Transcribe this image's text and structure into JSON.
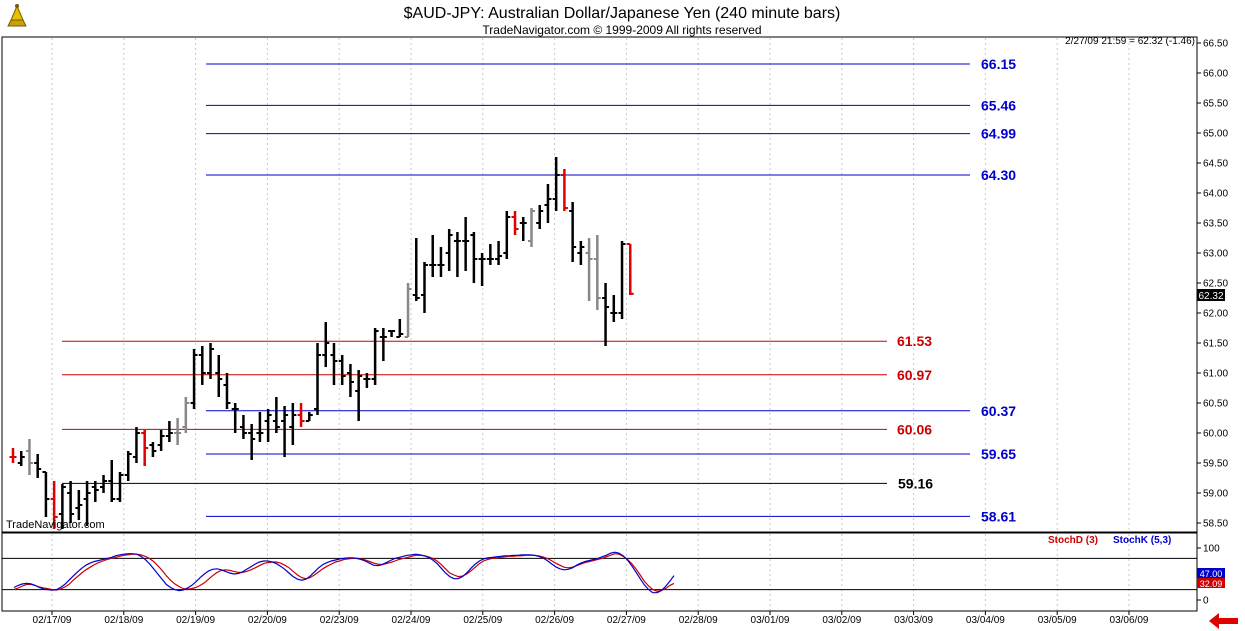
{
  "header": {
    "title": "$AUD-JPY:  Australian Dollar/Japanese Yen  (240 minute bars)",
    "copyright": "TradeNavigator.com © 1999-2009 All rights reserved",
    "last_stamp": "2/27/09 21:59 = 62.32 (-1.46)",
    "watermark": "TradeNavigator.com"
  },
  "colors": {
    "blue": "#0000cc",
    "red": "#cc0000",
    "black": "#000000",
    "up": "#000000",
    "down": "#e00000",
    "neutral": "#888888"
  },
  "chart_data": [
    {
      "type": "ohlc",
      "ylim": [
        58.4,
        66.55
      ],
      "y_ticks": [
        "66.50",
        "66.00",
        "65.50",
        "65.00",
        "64.50",
        "64.00",
        "63.50",
        "63.00",
        "62.50",
        "62.00",
        "61.50",
        "61.00",
        "60.50",
        "60.00",
        "59.50",
        "59.00",
        "58.50"
      ],
      "y_tick_values": [
        66.5,
        66.0,
        65.5,
        65.0,
        64.5,
        64.0,
        63.5,
        63.0,
        62.5,
        62.0,
        61.5,
        61.0,
        60.5,
        60.0,
        59.5,
        59.0,
        58.5
      ],
      "x_labels": [
        "02/17/09",
        "02/18/09",
        "02/19/09",
        "02/20/09",
        "02/23/09",
        "02/24/09",
        "02/25/09",
        "02/26/09",
        "02/27/09",
        "02/28/09",
        "03/01/09",
        "03/02/09",
        "03/03/09",
        "03/04/09",
        "03/05/09",
        "03/06/09"
      ],
      "last_price": "62.32",
      "levels": [
        {
          "label": "66.15",
          "value": 66.15,
          "color": "blue"
        },
        {
          "label": "65.46",
          "value": 65.46,
          "color": "blue"
        },
        {
          "label": "64.99",
          "value": 64.99,
          "color": "blue"
        },
        {
          "label": "64.30",
          "value": 64.3,
          "color": "blue"
        },
        {
          "label": "61.53",
          "value": 61.53,
          "color": "red"
        },
        {
          "label": "60.97",
          "value": 60.97,
          "color": "red"
        },
        {
          "label": "60.37",
          "value": 60.37,
          "color": "blue"
        },
        {
          "label": "60.06",
          "value": 60.06,
          "color": "red"
        },
        {
          "label": "59.65",
          "value": 59.65,
          "color": "blue"
        },
        {
          "label": "59.16",
          "value": 59.16,
          "color": "black"
        },
        {
          "label": "58.61",
          "value": 58.61,
          "color": "blue"
        }
      ],
      "bars": [
        {
          "o": 59.6,
          "h": 59.75,
          "l": 59.5,
          "c": 59.6,
          "d": "down"
        },
        {
          "o": 59.5,
          "h": 59.7,
          "l": 59.45,
          "c": 59.6,
          "d": "up"
        },
        {
          "o": 59.7,
          "h": 59.9,
          "l": 59.3,
          "c": 59.5,
          "d": "neutral"
        },
        {
          "o": 59.5,
          "h": 59.65,
          "l": 59.25,
          "c": 59.4,
          "d": "up"
        },
        {
          "o": 59.35,
          "h": 59.35,
          "l": 58.6,
          "c": 58.9,
          "d": "up"
        },
        {
          "o": 58.9,
          "h": 59.2,
          "l": 58.4,
          "c": 58.6,
          "d": "down"
        },
        {
          "o": 58.65,
          "h": 59.15,
          "l": 58.4,
          "c": 59.1,
          "d": "up"
        },
        {
          "o": 59.0,
          "h": 59.2,
          "l": 58.5,
          "c": 58.65,
          "d": "up"
        },
        {
          "o": 58.75,
          "h": 59.05,
          "l": 58.55,
          "c": 58.8,
          "d": "up"
        },
        {
          "o": 58.9,
          "h": 59.2,
          "l": 58.45,
          "c": 59.0,
          "d": "up"
        },
        {
          "o": 59.1,
          "h": 59.2,
          "l": 58.85,
          "c": 59.05,
          "d": "up"
        },
        {
          "o": 59.1,
          "h": 59.3,
          "l": 59.0,
          "c": 59.2,
          "d": "up"
        },
        {
          "o": 59.2,
          "h": 59.55,
          "l": 58.85,
          "c": 58.9,
          "d": "up"
        },
        {
          "o": 58.9,
          "h": 59.35,
          "l": 58.85,
          "c": 59.3,
          "d": "up"
        },
        {
          "o": 59.3,
          "h": 59.7,
          "l": 59.2,
          "c": 59.65,
          "d": "up"
        },
        {
          "o": 59.6,
          "h": 60.1,
          "l": 59.5,
          "c": 60.0,
          "d": "up"
        },
        {
          "o": 60.0,
          "h": 60.05,
          "l": 59.45,
          "c": 59.75,
          "d": "down"
        },
        {
          "o": 59.8,
          "h": 59.85,
          "l": 59.6,
          "c": 59.7,
          "d": "up"
        },
        {
          "o": 59.8,
          "h": 60.05,
          "l": 59.7,
          "c": 59.95,
          "d": "up"
        },
        {
          "o": 59.95,
          "h": 60.2,
          "l": 59.85,
          "c": 60.0,
          "d": "up"
        },
        {
          "o": 60.0,
          "h": 60.25,
          "l": 59.8,
          "c": 60.0,
          "d": "neutral"
        },
        {
          "o": 60.1,
          "h": 60.6,
          "l": 60.0,
          "c": 60.5,
          "d": "neutral"
        },
        {
          "o": 60.5,
          "h": 61.4,
          "l": 60.4,
          "c": 61.3,
          "d": "up"
        },
        {
          "o": 61.3,
          "h": 61.45,
          "l": 60.8,
          "c": 61.0,
          "d": "up"
        },
        {
          "o": 61.0,
          "h": 61.5,
          "l": 60.9,
          "c": 61.4,
          "d": "up"
        },
        {
          "o": 61.0,
          "h": 61.3,
          "l": 60.6,
          "c": 60.9,
          "d": "up"
        },
        {
          "o": 60.8,
          "h": 61.0,
          "l": 60.4,
          "c": 60.5,
          "d": "up"
        },
        {
          "o": 60.4,
          "h": 60.5,
          "l": 60.0,
          "c": 60.4,
          "d": "up"
        },
        {
          "o": 60.1,
          "h": 60.3,
          "l": 59.9,
          "c": 60.0,
          "d": "up"
        },
        {
          "o": 60.0,
          "h": 60.15,
          "l": 59.55,
          "c": 59.9,
          "d": "up"
        },
        {
          "o": 60.0,
          "h": 60.35,
          "l": 59.85,
          "c": 60.0,
          "d": "up"
        },
        {
          "o": 60.2,
          "h": 60.4,
          "l": 59.85,
          "c": 60.3,
          "d": "up"
        },
        {
          "o": 60.2,
          "h": 60.6,
          "l": 60.0,
          "c": 60.1,
          "d": "up"
        },
        {
          "o": 60.2,
          "h": 60.45,
          "l": 59.6,
          "c": 60.3,
          "d": "up"
        },
        {
          "o": 60.1,
          "h": 60.5,
          "l": 59.8,
          "c": 60.3,
          "d": "up"
        },
        {
          "o": 60.3,
          "h": 60.5,
          "l": 60.1,
          "c": 60.2,
          "d": "down"
        },
        {
          "o": 60.2,
          "h": 60.35,
          "l": 60.2,
          "c": 60.3,
          "d": "up"
        },
        {
          "o": 60.4,
          "h": 61.5,
          "l": 60.3,
          "c": 61.3,
          "d": "up"
        },
        {
          "o": 61.3,
          "h": 61.85,
          "l": 61.1,
          "c": 61.5,
          "d": "up"
        },
        {
          "o": 61.3,
          "h": 61.5,
          "l": 60.8,
          "c": 61.2,
          "d": "up"
        },
        {
          "o": 61.2,
          "h": 61.3,
          "l": 60.8,
          "c": 60.95,
          "d": "up"
        },
        {
          "o": 61.0,
          "h": 61.15,
          "l": 60.6,
          "c": 60.85,
          "d": "up"
        },
        {
          "o": 60.7,
          "h": 61.05,
          "l": 60.2,
          "c": 60.95,
          "d": "up"
        },
        {
          "o": 60.9,
          "h": 61.0,
          "l": 60.75,
          "c": 60.9,
          "d": "up"
        },
        {
          "o": 60.9,
          "h": 61.75,
          "l": 60.8,
          "c": 61.7,
          "d": "up"
        },
        {
          "o": 61.6,
          "h": 61.75,
          "l": 61.2,
          "c": 61.6,
          "d": "up"
        },
        {
          "o": 61.7,
          "h": 61.7,
          "l": 61.6,
          "c": 61.7,
          "d": "up"
        },
        {
          "o": 61.6,
          "h": 61.9,
          "l": 61.6,
          "c": 61.65,
          "d": "up"
        },
        {
          "o": 61.6,
          "h": 62.5,
          "l": 61.6,
          "c": 62.4,
          "d": "neutral"
        },
        {
          "o": 62.3,
          "h": 63.25,
          "l": 62.2,
          "c": 62.25,
          "d": "up"
        },
        {
          "o": 62.3,
          "h": 62.85,
          "l": 62.0,
          "c": 62.8,
          "d": "up"
        },
        {
          "o": 62.8,
          "h": 63.3,
          "l": 62.6,
          "c": 62.8,
          "d": "up"
        },
        {
          "o": 62.8,
          "h": 63.1,
          "l": 62.6,
          "c": 62.8,
          "d": "up"
        },
        {
          "o": 63.0,
          "h": 63.4,
          "l": 62.7,
          "c": 63.3,
          "d": "up"
        },
        {
          "o": 63.2,
          "h": 63.35,
          "l": 62.6,
          "c": 63.2,
          "d": "up"
        },
        {
          "o": 63.2,
          "h": 63.6,
          "l": 62.7,
          "c": 63.2,
          "d": "up"
        },
        {
          "o": 63.3,
          "h": 63.35,
          "l": 62.5,
          "c": 62.9,
          "d": "up"
        },
        {
          "o": 62.9,
          "h": 63.0,
          "l": 62.45,
          "c": 62.9,
          "d": "up"
        },
        {
          "o": 62.9,
          "h": 63.15,
          "l": 62.8,
          "c": 62.9,
          "d": "up"
        },
        {
          "o": 62.9,
          "h": 63.2,
          "l": 62.8,
          "c": 62.95,
          "d": "up"
        },
        {
          "o": 63.0,
          "h": 63.7,
          "l": 62.9,
          "c": 63.6,
          "d": "up"
        },
        {
          "o": 63.6,
          "h": 63.7,
          "l": 63.3,
          "c": 63.4,
          "d": "down"
        },
        {
          "o": 63.5,
          "h": 63.6,
          "l": 63.2,
          "c": 63.5,
          "d": "up"
        },
        {
          "o": 63.2,
          "h": 63.75,
          "l": 63.1,
          "c": 63.7,
          "d": "neutral"
        },
        {
          "o": 63.5,
          "h": 63.8,
          "l": 63.4,
          "c": 63.7,
          "d": "up"
        },
        {
          "o": 63.8,
          "h": 64.15,
          "l": 63.5,
          "c": 63.9,
          "d": "up"
        },
        {
          "o": 63.9,
          "h": 64.6,
          "l": 63.7,
          "c": 64.3,
          "d": "up"
        },
        {
          "o": 64.3,
          "h": 64.4,
          "l": 63.7,
          "c": 63.75,
          "d": "down"
        },
        {
          "o": 63.7,
          "h": 63.85,
          "l": 62.85,
          "c": 63.1,
          "d": "up"
        },
        {
          "o": 63.0,
          "h": 63.2,
          "l": 62.8,
          "c": 63.1,
          "d": "up"
        },
        {
          "o": 63.0,
          "h": 63.25,
          "l": 62.2,
          "c": 62.9,
          "d": "neutral"
        },
        {
          "o": 62.9,
          "h": 63.3,
          "l": 62.05,
          "c": 62.25,
          "d": "neutral"
        },
        {
          "o": 62.25,
          "h": 62.5,
          "l": 61.45,
          "c": 62.1,
          "d": "up"
        },
        {
          "o": 62.0,
          "h": 62.3,
          "l": 61.85,
          "c": 62.0,
          "d": "up"
        },
        {
          "o": 62.0,
          "h": 63.2,
          "l": 61.9,
          "c": 63.15,
          "d": "up"
        },
        {
          "o": 63.15,
          "h": 63.15,
          "l": 62.3,
          "c": 62.32,
          "d": "down"
        }
      ]
    },
    {
      "type": "line",
      "title": "StochD (3) / StochK (5,3)",
      "ylim": [
        0,
        100
      ],
      "y_ticks": [
        "100",
        "50",
        "0"
      ],
      "y_tick_values": [
        100,
        50,
        0
      ],
      "last_k": "47.00",
      "last_d": "32.09",
      "series": [
        {
          "name": "StochD (3)",
          "color": "red",
          "values": [
            20,
            23,
            27,
            30,
            30,
            28,
            25,
            23,
            22,
            20,
            19,
            21,
            25,
            30,
            38,
            45,
            52,
            58,
            63,
            68,
            72,
            75,
            78,
            80,
            82,
            84,
            86,
            87,
            88,
            88,
            87,
            84,
            80,
            74,
            66,
            57,
            47,
            38,
            31,
            26,
            22,
            21,
            22,
            24,
            28,
            33,
            40,
            47,
            53,
            57,
            58,
            57,
            55,
            53,
            53,
            55,
            58,
            62,
            66,
            70,
            72,
            73,
            73,
            71,
            67,
            62,
            55,
            48,
            43,
            41,
            43,
            48,
            54,
            60,
            65,
            69,
            73,
            75,
            78,
            79,
            80,
            80,
            79,
            77,
            74,
            71,
            69,
            68,
            70,
            72,
            75,
            78,
            80,
            82,
            84,
            86,
            86,
            85,
            83,
            80,
            75,
            68,
            60,
            52,
            48,
            45,
            46,
            50,
            56,
            63,
            70,
            75,
            78,
            80,
            81,
            82,
            83,
            84,
            84,
            85,
            85,
            86,
            86,
            86,
            85,
            83,
            80,
            76,
            71,
            67,
            63,
            62,
            63,
            66,
            69,
            72,
            74,
            76,
            78,
            80,
            83,
            86,
            89,
            88,
            84,
            78,
            70,
            60,
            48,
            36,
            27,
            20,
            17,
            18,
            22,
            28,
            32
          ]
        },
        {
          "name": "StochK (5,3)",
          "color": "blue",
          "values": [
            24,
            28,
            31,
            32,
            31,
            28,
            24,
            21,
            20,
            19,
            20,
            24,
            30,
            38,
            46,
            54,
            61,
            67,
            71,
            74,
            76,
            78,
            80,
            82,
            85,
            87,
            88,
            89,
            89,
            88,
            84,
            78,
            70,
            60,
            50,
            40,
            30,
            24,
            20,
            18,
            19,
            23,
            28,
            35,
            43,
            50,
            56,
            59,
            60,
            58,
            55,
            52,
            50,
            51,
            54,
            59,
            64,
            69,
            73,
            75,
            75,
            73,
            70,
            65,
            59,
            52,
            45,
            40,
            38,
            40,
            46,
            54,
            62,
            68,
            72,
            75,
            77,
            79,
            80,
            81,
            81,
            80,
            78,
            75,
            71,
            67,
            66,
            68,
            72,
            76,
            80,
            82,
            84,
            86,
            87,
            88,
            87,
            85,
            82,
            77,
            70,
            61,
            52,
            45,
            41,
            41,
            45,
            52,
            61,
            69,
            75,
            79,
            81,
            82,
            83,
            84,
            85,
            85,
            86,
            86,
            87,
            87,
            87,
            86,
            84,
            81,
            76,
            70,
            64,
            60,
            58,
            59,
            62,
            67,
            71,
            74,
            76,
            78,
            80,
            83,
            86,
            90,
            92,
            90,
            85,
            77,
            66,
            54,
            41,
            29,
            20,
            14,
            14,
            18,
            26,
            36,
            47
          ]
        }
      ]
    }
  ]
}
